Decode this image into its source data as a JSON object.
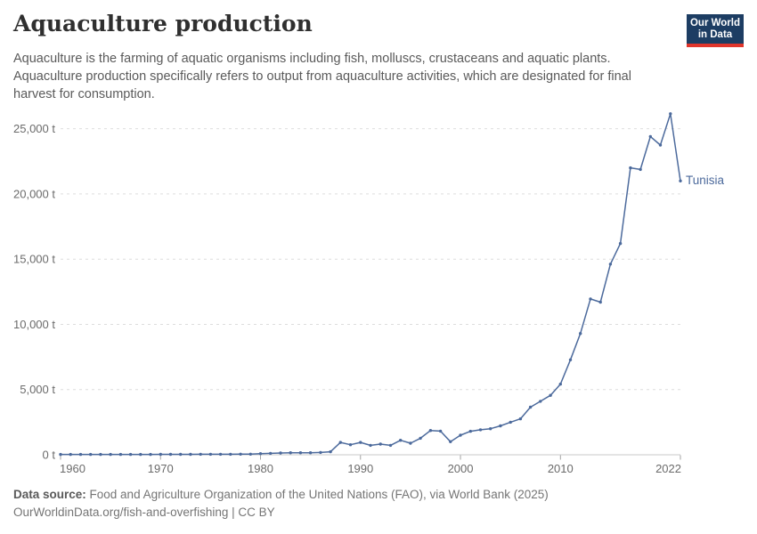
{
  "header": {
    "title": "Aquaculture production",
    "subtitle": "Aquaculture is the farming of aquatic organisms including fish, molluscs, crustaceans and aquatic plants.\nAquaculture production specifically refers to output from aquaculture activities, which are designated for final\nharvest for consumption.",
    "logo": {
      "line1": "Our World",
      "line2": "in Data",
      "bg_color": "#1d3d63",
      "accent_color": "#e0352b"
    }
  },
  "chart_data": {
    "type": "line",
    "title": "Aquaculture production",
    "unit": "t",
    "grid": true,
    "legend_position": "end-of-line-label",
    "x_ticks": [
      1960,
      1970,
      1980,
      1990,
      2000,
      2010,
      2022
    ],
    "y_ticks": [
      0,
      5000,
      10000,
      15000,
      20000,
      25000
    ],
    "xlim": [
      1960,
      2022
    ],
    "ylim": [
      0,
      26500
    ],
    "years": [
      1960,
      1961,
      1962,
      1963,
      1964,
      1965,
      1966,
      1967,
      1968,
      1969,
      1970,
      1971,
      1972,
      1973,
      1974,
      1975,
      1976,
      1977,
      1978,
      1979,
      1980,
      1981,
      1982,
      1983,
      1984,
      1985,
      1986,
      1987,
      1988,
      1989,
      1990,
      1991,
      1992,
      1993,
      1994,
      1995,
      1996,
      1997,
      1998,
      1999,
      2000,
      2001,
      2002,
      2003,
      2004,
      2005,
      2006,
      2007,
      2008,
      2009,
      2010,
      2011,
      2012,
      2013,
      2014,
      2015,
      2016,
      2017,
      2018,
      2019,
      2020,
      2021,
      2022
    ],
    "series": [
      {
        "name": "Tunisia",
        "color": "#4c6a9c",
        "values": [
          30,
          30,
          30,
          30,
          30,
          30,
          30,
          30,
          30,
          30,
          35,
          35,
          35,
          35,
          40,
          40,
          40,
          40,
          45,
          50,
          90,
          110,
          135,
          155,
          155,
          155,
          175,
          230,
          950,
          770,
          950,
          720,
          820,
          720,
          1110,
          890,
          1270,
          1860,
          1815,
          1000,
          1500,
          1800,
          1920,
          2000,
          2220,
          2500,
          2760,
          3650,
          4100,
          4560,
          5420,
          7280,
          9300,
          11950,
          11700,
          14620,
          16200,
          22000,
          21880,
          24400,
          23750,
          26150,
          21000
        ]
      }
    ],
    "colors": {
      "gridline": "#dedede",
      "axis_line": "#c8c8c8",
      "tick_mark": "#a3a3a3",
      "tick_text": "#6b6b6b"
    }
  },
  "footer": {
    "source_prefix": "Data source:",
    "source_text": " Food and Agriculture Organization of the United Nations (FAO), via World Bank (2025)",
    "url_line": "OurWorldinData.org/fish-and-overfishing | CC BY"
  }
}
